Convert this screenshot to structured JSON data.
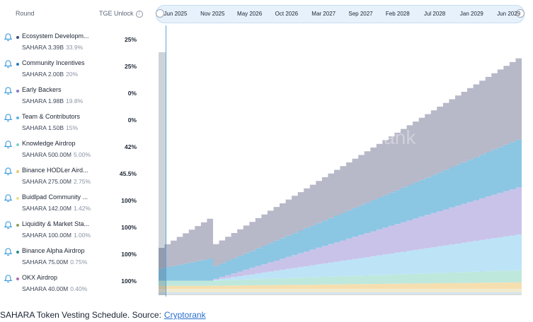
{
  "header": {
    "round_label": "Round",
    "tge_label": "TGE Unlock",
    "info_icon": "info-icon"
  },
  "rows": [
    {
      "name": "Ecosystem Developm...",
      "amount": "SAHARA 3.39B",
      "pct": "33.9%",
      "tge": "25%",
      "color": "#3c4f78"
    },
    {
      "name": "Community Incentives",
      "amount": "SAHARA 2.00B",
      "pct": "20%",
      "tge": "25%",
      "color": "#2a7ab8"
    },
    {
      "name": "Early Backers",
      "amount": "SAHARA 1.98B",
      "pct": "19.8%",
      "tge": "0%",
      "color": "#8a73c7"
    },
    {
      "name": "Team & Contributors",
      "amount": "SAHARA 1.50B",
      "pct": "15%",
      "tge": "0%",
      "color": "#5ab3e0"
    },
    {
      "name": "Knowledge Airdrop",
      "amount": "SAHARA 500.00M",
      "pct": "5.00%",
      "tge": "42%",
      "color": "#7fd3c0"
    },
    {
      "name": "Binance HODLer Aird...",
      "amount": "SAHARA 275.00M",
      "pct": "2.75%",
      "tge": "45.5%",
      "color": "#e8c86a"
    },
    {
      "name": "Buidlpad Community ...",
      "amount": "SAHARA 142.00M",
      "pct": "1.42%",
      "tge": "100%",
      "color": "#e9e18a"
    },
    {
      "name": "Liquidity & Market Sta...",
      "amount": "SAHARA 100.00M",
      "pct": "1.00%",
      "tge": "100%",
      "color": "#8aa05a"
    },
    {
      "name": "Binance Alpha Airdrop",
      "amount": "SAHARA 75.00M",
      "pct": "0.75%",
      "tge": "100%",
      "color": "#2c8a8a"
    },
    {
      "name": "OKX Airdrop",
      "amount": "SAHARA 40.00M",
      "pct": "0.40%",
      "tge": "100%",
      "color": "#b06ab0"
    }
  ],
  "timeline": {
    "ticks": [
      "Jun 2025",
      "Nov 2025",
      "May 2026",
      "Oct 2026",
      "Mar 2027",
      "Sep 2027",
      "Feb 2028",
      "Jul 2028",
      "Jan 2029",
      "Jun 2029"
    ]
  },
  "watermark": "cryptorank",
  "caption": {
    "text": "SAHARA Token Vesting Schedule. Source:",
    "link": "Cryptorank"
  },
  "chart_data": {
    "type": "area",
    "stacked": true,
    "x_range": [
      "Jun 2025",
      "Jun 2029"
    ],
    "ylim": [
      0,
      1
    ],
    "y_unit": "fraction of total supply (approx.)",
    "steps_per_year": 12,
    "series": [
      {
        "color": "#dcd8d4",
        "start": 0.004,
        "end": 0.004
      },
      {
        "color": "#d4e4ef",
        "start": 0.0075,
        "end": 0.0075
      },
      {
        "color": "#f0ebcf",
        "start": 0.0142,
        "end": 0.0142
      },
      {
        "color": "#f5dfb0",
        "start": 0.013,
        "end": 0.0275
      },
      {
        "color": "#bfe8dd",
        "start": 0.021,
        "end": 0.05
      },
      {
        "color": "#bde3f7",
        "start": 0.0,
        "end": 0.15
      },
      {
        "color": "#c9c3ea",
        "start": 0.0,
        "end": 0.198
      },
      {
        "color": "#8bc6e3",
        "start": 0.05,
        "end": 0.2
      },
      {
        "color": "#b7b8c8",
        "start": 0.085,
        "end": 0.339
      }
    ]
  }
}
